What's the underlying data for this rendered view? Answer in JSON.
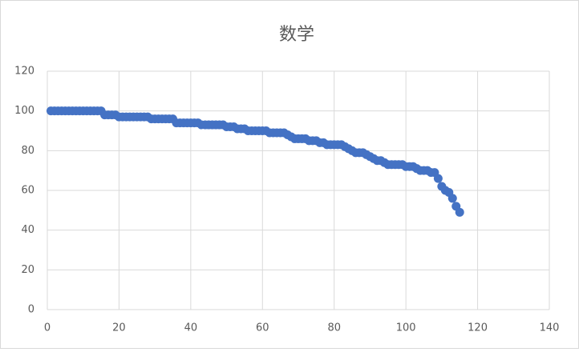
{
  "chart_data": {
    "type": "scatter",
    "title": "数学",
    "x": [
      1,
      2,
      3,
      4,
      5,
      6,
      7,
      8,
      9,
      10,
      11,
      12,
      13,
      14,
      15,
      16,
      17,
      18,
      19,
      20,
      21,
      22,
      23,
      24,
      25,
      26,
      27,
      28,
      29,
      30,
      31,
      32,
      33,
      34,
      35,
      36,
      37,
      38,
      39,
      40,
      41,
      42,
      43,
      44,
      45,
      46,
      47,
      48,
      49,
      50,
      51,
      52,
      53,
      54,
      55,
      56,
      57,
      58,
      59,
      60,
      61,
      62,
      63,
      64,
      65,
      66,
      67,
      68,
      69,
      70,
      71,
      72,
      73,
      74,
      75,
      76,
      77,
      78,
      79,
      80,
      81,
      82,
      83,
      84,
      85,
      86,
      87,
      88,
      89,
      90,
      91,
      92,
      93,
      94,
      95,
      96,
      97,
      98,
      99,
      100,
      101,
      102,
      103,
      104,
      105,
      106,
      107,
      108,
      109,
      110,
      111,
      112,
      113,
      114,
      115
    ],
    "values": [
      100,
      100,
      100,
      100,
      100,
      100,
      100,
      100,
      100,
      100,
      100,
      100,
      100,
      100,
      100,
      98,
      98,
      98,
      98,
      97,
      97,
      97,
      97,
      97,
      97,
      97,
      97,
      97,
      96,
      96,
      96,
      96,
      96,
      96,
      96,
      94,
      94,
      94,
      94,
      94,
      94,
      94,
      93,
      93,
      93,
      93,
      93,
      93,
      93,
      92,
      92,
      92,
      91,
      91,
      91,
      90,
      90,
      90,
      90,
      90,
      90,
      89,
      89,
      89,
      89,
      89,
      88,
      87,
      86,
      86,
      86,
      86,
      85,
      85,
      85,
      84,
      84,
      83,
      83,
      83,
      83,
      83,
      82,
      81,
      80,
      79,
      79,
      79,
      78,
      77,
      76,
      75,
      75,
      74,
      73,
      73,
      73,
      73,
      73,
      72,
      72,
      72,
      71,
      70,
      70,
      70,
      69,
      69,
      66,
      62,
      60,
      59,
      56,
      52,
      49
    ],
    "color": "#4472c4",
    "xlim": [
      0,
      140
    ],
    "xticks": [
      0,
      20,
      40,
      60,
      80,
      100,
      120,
      140
    ],
    "ylim": [
      0,
      120
    ],
    "yticks": [
      0,
      20,
      40,
      60,
      80,
      100,
      120
    ],
    "grid": true
  }
}
